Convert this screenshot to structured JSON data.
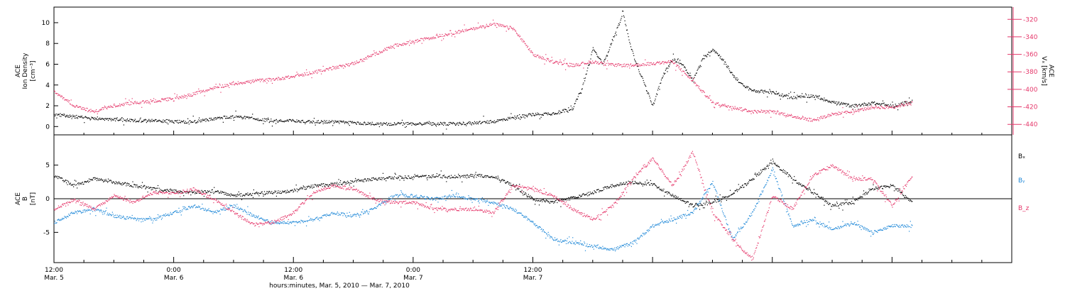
{
  "colors": {
    "black": "#000000",
    "pink": "#e5386b",
    "blue": "#1e88d8"
  },
  "chart_data": [
    {
      "type": "scatter",
      "panel": "top",
      "ylabel_lines": [
        "ACE",
        "Ion Density"
      ],
      "ylabel_units": "[cm⁻³]",
      "ylim": [
        -0.8,
        11.5
      ],
      "yticks": [
        0,
        2,
        4,
        6,
        8,
        10
      ],
      "right_axis": {
        "label_lines": [
          "ACE",
          "Vₓ [km/s]"
        ],
        "ylim": [
          -452,
          -306
        ],
        "yticks": [
          -320,
          -340,
          -360,
          -380,
          -400,
          -420,
          -440
        ],
        "color": "#e5386b"
      },
      "series": [
        {
          "color": "#000000",
          "axis": "left",
          "points": [
            [
              0,
              1.2
            ],
            [
              2,
              1.0
            ],
            [
              4,
              0.8
            ],
            [
              6,
              0.7
            ],
            [
              8,
              0.6
            ],
            [
              10,
              0.6
            ],
            [
              12,
              0.5
            ],
            [
              14,
              0.5
            ],
            [
              16,
              0.8
            ],
            [
              18,
              1.0
            ],
            [
              20,
              0.8
            ],
            [
              22,
              0.6
            ],
            [
              24,
              0.6
            ],
            [
              26,
              0.5
            ],
            [
              28,
              0.5
            ],
            [
              30,
              0.4
            ],
            [
              32,
              0.3
            ],
            [
              34,
              0.3
            ],
            [
              36,
              0.3
            ],
            [
              38,
              0.3
            ],
            [
              40,
              0.3
            ],
            [
              42,
              0.4
            ],
            [
              44,
              0.5
            ],
            [
              46,
              0.9
            ],
            [
              48,
              1.2
            ],
            [
              50,
              1.3
            ],
            [
              52,
              1.8
            ],
            [
              53,
              4.0
            ],
            [
              54,
              7.5
            ],
            [
              55,
              6.0
            ],
            [
              56,
              8.5
            ],
            [
              57,
              10.8
            ],
            [
              58,
              7.0
            ],
            [
              59,
              4.5
            ],
            [
              60,
              2.0
            ],
            [
              61,
              5.0
            ],
            [
              62,
              6.5
            ],
            [
              63,
              6.0
            ],
            [
              64,
              4.5
            ],
            [
              65,
              6.5
            ],
            [
              66,
              7.5
            ],
            [
              67,
              6.5
            ],
            [
              68,
              5.0
            ],
            [
              69,
              4.0
            ],
            [
              70,
              3.5
            ],
            [
              72,
              3.3
            ],
            [
              74,
              2.8
            ],
            [
              76,
              3.0
            ],
            [
              78,
              2.4
            ],
            [
              80,
              2.0
            ],
            [
              82,
              2.3
            ],
            [
              84,
              2.0
            ],
            [
              86,
              2.5
            ]
          ]
        },
        {
          "color": "#e5386b",
          "axis": "right",
          "points": [
            [
              0,
              -402
            ],
            [
              2,
              -418
            ],
            [
              4,
              -425
            ],
            [
              6,
              -418
            ],
            [
              8,
              -415
            ],
            [
              10,
              -413
            ],
            [
              12,
              -410
            ],
            [
              14,
              -405
            ],
            [
              16,
              -398
            ],
            [
              18,
              -393
            ],
            [
              20,
              -390
            ],
            [
              22,
              -388
            ],
            [
              24,
              -385
            ],
            [
              26,
              -380
            ],
            [
              28,
              -375
            ],
            [
              30,
              -370
            ],
            [
              32,
              -360
            ],
            [
              34,
              -350
            ],
            [
              36,
              -345
            ],
            [
              38,
              -340
            ],
            [
              40,
              -335
            ],
            [
              42,
              -330
            ],
            [
              44,
              -325
            ],
            [
              46,
              -330
            ],
            [
              48,
              -360
            ],
            [
              50,
              -368
            ],
            [
              52,
              -372
            ],
            [
              54,
              -368
            ],
            [
              56,
              -372
            ],
            [
              58,
              -372
            ],
            [
              60,
              -370
            ],
            [
              62,
              -368
            ],
            [
              64,
              -390
            ],
            [
              66,
              -415
            ],
            [
              68,
              -420
            ],
            [
              70,
              -425
            ],
            [
              72,
              -425
            ],
            [
              74,
              -430
            ],
            [
              76,
              -435
            ],
            [
              78,
              -428
            ],
            [
              80,
              -425
            ],
            [
              82,
              -420
            ],
            [
              84,
              -420
            ],
            [
              86,
              -415
            ]
          ]
        }
      ]
    },
    {
      "type": "scatter",
      "panel": "bottom",
      "ylabel_lines": [
        "ACE",
        "B"
      ],
      "ylabel_units": "[nT]",
      "ylim": [
        -9.5,
        9.5
      ],
      "yticks": [
        5,
        0,
        -5
      ],
      "zero_line": true,
      "series": [
        {
          "name": "Bₓ",
          "color": "#000000",
          "points": [
            [
              0,
              3.5
            ],
            [
              2,
              2.0
            ],
            [
              4,
              3.0
            ],
            [
              6,
              2.5
            ],
            [
              8,
              2.0
            ],
            [
              10,
              1.5
            ],
            [
              12,
              1.2
            ],
            [
              14,
              1.0
            ],
            [
              16,
              1.2
            ],
            [
              18,
              0.5
            ],
            [
              20,
              0.8
            ],
            [
              22,
              1.0
            ],
            [
              24,
              1.2
            ],
            [
              26,
              2.0
            ],
            [
              28,
              2.2
            ],
            [
              30,
              2.6
            ],
            [
              32,
              3.0
            ],
            [
              34,
              3.2
            ],
            [
              36,
              3.3
            ],
            [
              38,
              3.4
            ],
            [
              40,
              3.3
            ],
            [
              42,
              3.5
            ],
            [
              44,
              3.4
            ],
            [
              46,
              2.0
            ],
            [
              48,
              0.0
            ],
            [
              50,
              -0.5
            ],
            [
              52,
              0.2
            ],
            [
              54,
              1.0
            ],
            [
              56,
              2.0
            ],
            [
              58,
              2.5
            ],
            [
              60,
              2.2
            ],
            [
              62,
              0.5
            ],
            [
              64,
              -1.0
            ],
            [
              66,
              -0.5
            ],
            [
              68,
              0.8
            ],
            [
              70,
              3.0
            ],
            [
              72,
              5.5
            ],
            [
              74,
              3.0
            ],
            [
              76,
              1.0
            ],
            [
              78,
              -1.0
            ],
            [
              80,
              -0.5
            ],
            [
              82,
              1.5
            ],
            [
              84,
              2.0
            ],
            [
              86,
              -0.5
            ]
          ]
        },
        {
          "name": "Bᵧ",
          "color": "#1e88d8",
          "points": [
            [
              0,
              -3.5
            ],
            [
              2,
              -2.0
            ],
            [
              4,
              -1.5
            ],
            [
              6,
              -2.5
            ],
            [
              8,
              -3.0
            ],
            [
              10,
              -3.0
            ],
            [
              12,
              -2.0
            ],
            [
              14,
              -1.0
            ],
            [
              16,
              -2.0
            ],
            [
              18,
              -1.0
            ],
            [
              20,
              -2.5
            ],
            [
              22,
              -3.5
            ],
            [
              24,
              -3.5
            ],
            [
              26,
              -3.0
            ],
            [
              28,
              -2.0
            ],
            [
              30,
              -2.5
            ],
            [
              32,
              -1.5
            ],
            [
              34,
              0.5
            ],
            [
              36,
              0.5
            ],
            [
              38,
              0.0
            ],
            [
              40,
              0.5
            ],
            [
              42,
              0.0
            ],
            [
              44,
              -0.5
            ],
            [
              46,
              -1.5
            ],
            [
              48,
              -3.5
            ],
            [
              50,
              -6.0
            ],
            [
              52,
              -6.5
            ],
            [
              54,
              -7.0
            ],
            [
              56,
              -7.5
            ],
            [
              58,
              -6.5
            ],
            [
              60,
              -4.0
            ],
            [
              62,
              -3.0
            ],
            [
              64,
              -2.0
            ],
            [
              66,
              2.5
            ],
            [
              68,
              -6.0
            ],
            [
              70,
              -2.0
            ],
            [
              72,
              4.5
            ],
            [
              74,
              -4.0
            ],
            [
              76,
              -3.0
            ],
            [
              78,
              -4.5
            ],
            [
              80,
              -3.5
            ],
            [
              82,
              -5.0
            ],
            [
              84,
              -4.0
            ],
            [
              86,
              -4.0
            ]
          ]
        },
        {
          "name": "B_z",
          "color": "#e5386b",
          "points": [
            [
              0,
              -1.5
            ],
            [
              2,
              0.0
            ],
            [
              4,
              -1.5
            ],
            [
              6,
              0.5
            ],
            [
              8,
              -0.5
            ],
            [
              10,
              1.0
            ],
            [
              12,
              0.8
            ],
            [
              14,
              1.5
            ],
            [
              16,
              0.0
            ],
            [
              18,
              -2.0
            ],
            [
              20,
              -3.8
            ],
            [
              22,
              -3.5
            ],
            [
              24,
              -2.0
            ],
            [
              26,
              1.0
            ],
            [
              28,
              2.0
            ],
            [
              30,
              1.5
            ],
            [
              32,
              0.0
            ],
            [
              34,
              -0.5
            ],
            [
              36,
              -0.5
            ],
            [
              38,
              -1.5
            ],
            [
              40,
              -1.5
            ],
            [
              42,
              -1.5
            ],
            [
              44,
              -2.0
            ],
            [
              46,
              2.0
            ],
            [
              48,
              1.5
            ],
            [
              50,
              0.5
            ],
            [
              52,
              -1.5
            ],
            [
              54,
              -3.0
            ],
            [
              56,
              -1.0
            ],
            [
              58,
              3.0
            ],
            [
              60,
              6.0
            ],
            [
              62,
              2.0
            ],
            [
              64,
              7.0
            ],
            [
              66,
              -2.0
            ],
            [
              68,
              -6.0
            ],
            [
              70,
              -9.0
            ],
            [
              72,
              0.5
            ],
            [
              74,
              -1.5
            ],
            [
              76,
              3.5
            ],
            [
              78,
              5.0
            ],
            [
              80,
              3.0
            ],
            [
              82,
              3.0
            ],
            [
              84,
              -1.0
            ],
            [
              86,
              3.5
            ]
          ]
        }
      ]
    }
  ],
  "legend": [
    "Bₓ",
    "Bᵧ",
    "B_z"
  ],
  "x_axis": {
    "range_hours": [
      0,
      96
    ],
    "ticks": [
      {
        "hour": 0,
        "time": "12:00",
        "day": "Mar. 5"
      },
      {
        "hour": 12,
        "time": "0:00",
        "day": "Mar. 6"
      },
      {
        "hour": 24,
        "time": "12:00",
        "day": "Mar. 6"
      },
      {
        "hour": 36,
        "time": "0:00",
        "day": "Mar. 7"
      },
      {
        "hour": 48,
        "time": "12:00",
        "day": "Mar. 7"
      }
    ],
    "title": "hours:minutes, Mar.  5, 2010 — Mar.  7, 2010"
  }
}
